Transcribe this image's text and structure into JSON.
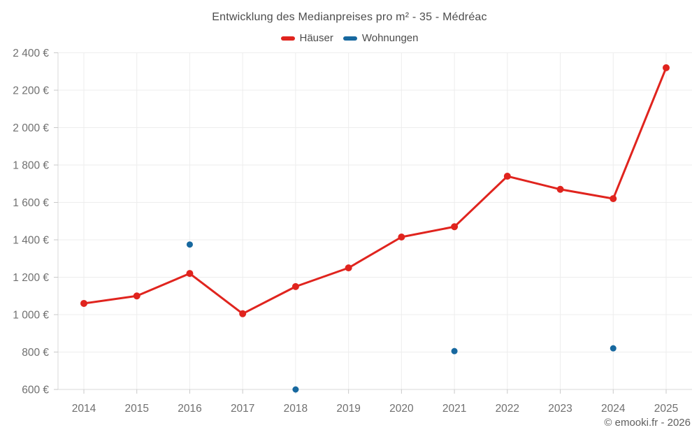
{
  "chart_data": {
    "type": "line",
    "title": "Entwicklung des Medianpreises pro m² - 35 - Médréac",
    "xlabel": "",
    "ylabel": "",
    "x_ticks": [
      "2014",
      "2015",
      "2016",
      "2017",
      "2018",
      "2019",
      "2020",
      "2021",
      "2022",
      "2023",
      "2024",
      "2025"
    ],
    "y_tick_values": [
      600,
      800,
      1000,
      1200,
      1400,
      1600,
      1800,
      2000,
      2200,
      2400
    ],
    "y_tick_labels": [
      "600 €",
      "800 €",
      "1 000 €",
      "1 200 €",
      "1 400 €",
      "1 600 €",
      "1 800 €",
      "2 000 €",
      "2 200 €",
      "2 400 €"
    ],
    "ylim": [
      600,
      2400
    ],
    "grid": true,
    "legend_position": "top",
    "series": [
      {
        "name": "Häuser",
        "color": "#e0241e",
        "style": "line-with-markers",
        "marker_radius": 5,
        "values": [
          1060,
          1100,
          1220,
          1005,
          1150,
          1250,
          1415,
          1470,
          1740,
          1670,
          1620,
          2320
        ]
      },
      {
        "name": "Wohnungen",
        "color": "#17689f",
        "style": "markers-only",
        "marker_radius": 4.5,
        "values": [
          null,
          null,
          1375,
          null,
          600,
          null,
          null,
          805,
          null,
          null,
          820,
          null
        ]
      }
    ]
  },
  "footer": "© emooki.fr - 2026"
}
